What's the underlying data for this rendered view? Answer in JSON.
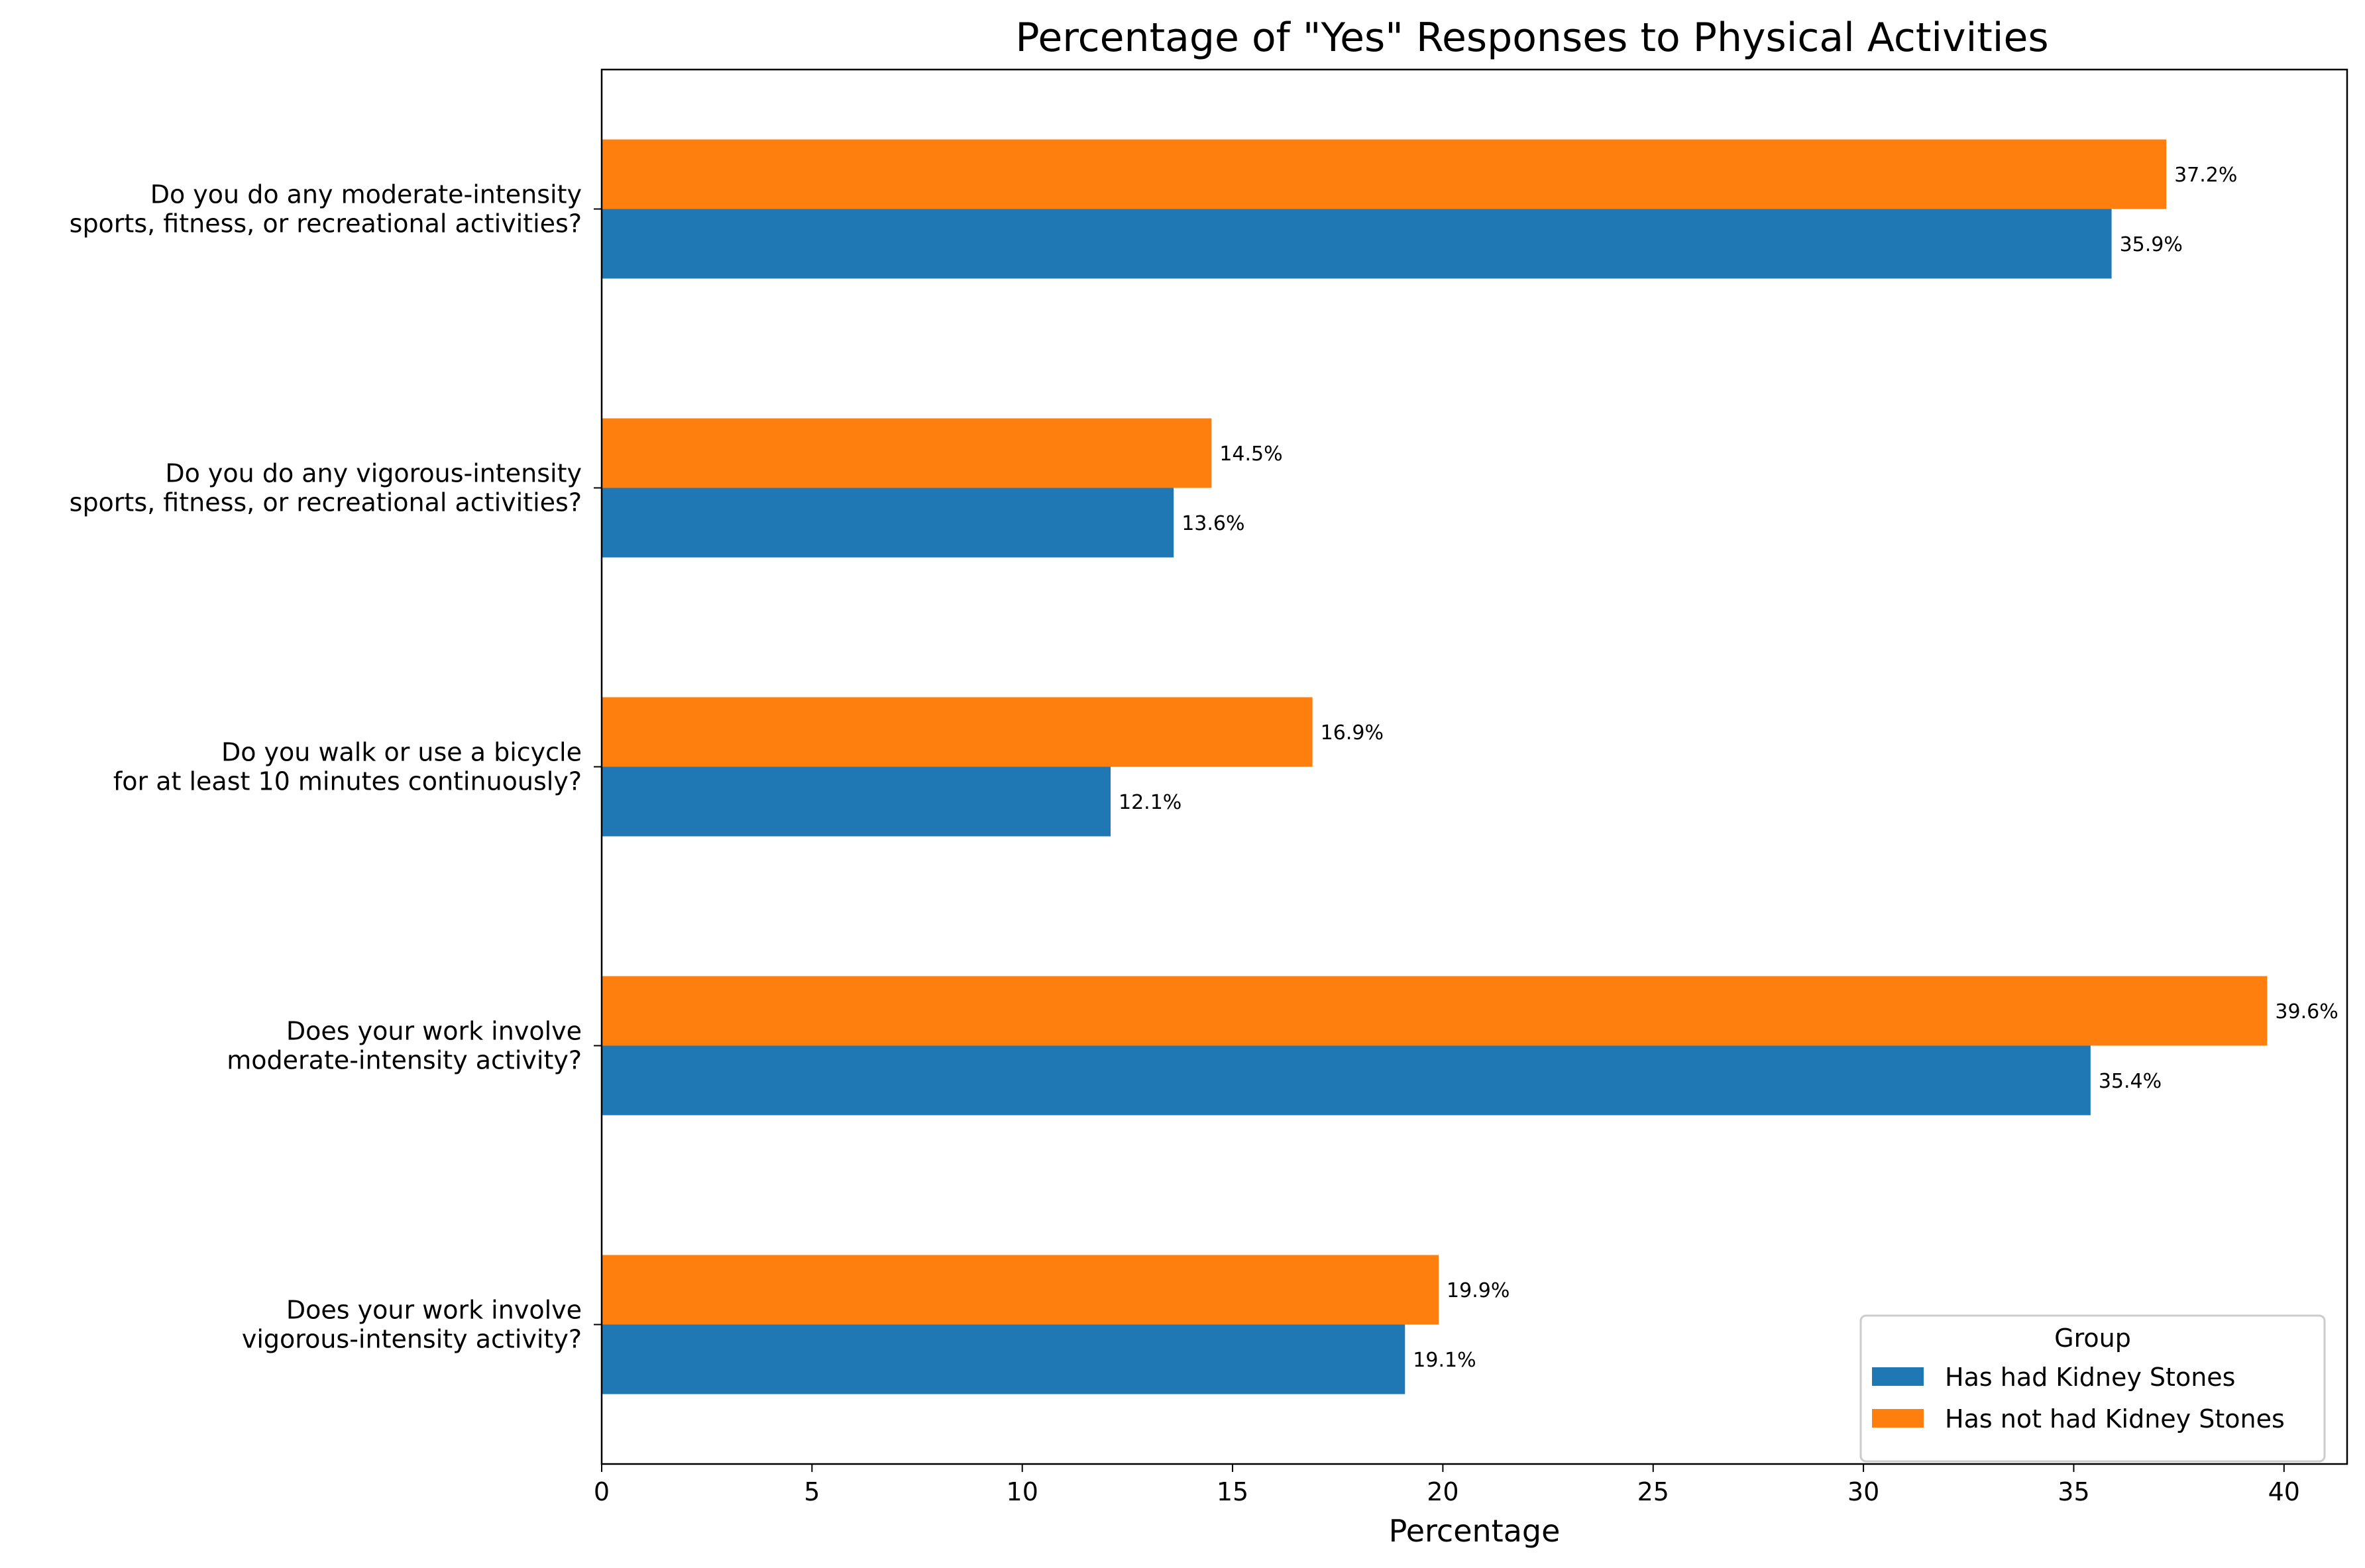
{
  "chart_data": {
    "type": "bar",
    "orientation": "horizontal",
    "title": "Percentage of \"Yes\" Responses to Physical Activities",
    "xlabel": "Percentage",
    "ylabel": "",
    "xlim": [
      0,
      41.5
    ],
    "xticks": [
      0,
      5,
      10,
      15,
      20,
      25,
      30,
      35,
      40
    ],
    "grid": false,
    "legend": {
      "title": "Group",
      "placement": "lower-right"
    },
    "categories": [
      [
        "Do you do any moderate-intensity",
        "sports, fitness, or recreational activities?"
      ],
      [
        "Do you do any vigorous-intensity",
        "sports, fitness, or recreational activities?"
      ],
      [
        "Do you walk or use a bicycle",
        "for at least 10 minutes continuously?"
      ],
      [
        "Does your work involve",
        "moderate-intensity activity?"
      ],
      [
        "Does your work involve",
        "vigorous-intensity activity?"
      ]
    ],
    "series": [
      {
        "name": "Has had Kidney Stones",
        "color": "#1f77b4",
        "values": [
          35.9,
          13.6,
          12.1,
          35.4,
          19.1
        ],
        "labels": [
          "35.9%",
          "13.6%",
          "12.1%",
          "35.4%",
          "19.1%"
        ]
      },
      {
        "name": "Has not had Kidney Stones",
        "color": "#ff7f0e",
        "values": [
          37.2,
          14.5,
          16.9,
          39.6,
          19.9
        ],
        "labels": [
          "37.2%",
          "14.5%",
          "16.9%",
          "39.6%",
          "19.9%"
        ]
      }
    ]
  }
}
